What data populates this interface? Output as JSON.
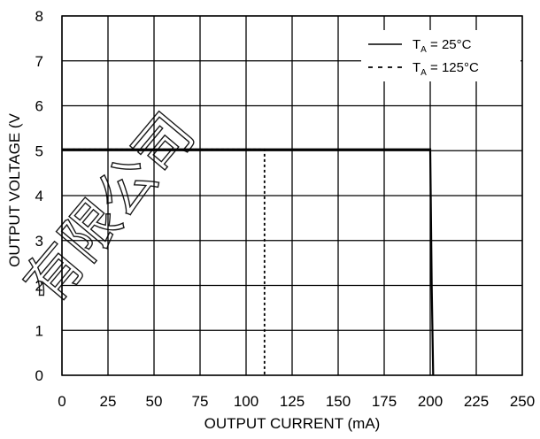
{
  "chart_data": {
    "type": "line",
    "xlabel": "OUTPUT CURRENT  (mA)",
    "ylabel": "OUTPUT VOLTAGE  (V",
    "xlim": [
      0,
      250
    ],
    "ylim": [
      0,
      8
    ],
    "x_ticks": [
      "0",
      "25",
      "50",
      "75",
      "100",
      "125",
      "150",
      "175",
      "200",
      "225",
      "250"
    ],
    "y_ticks": [
      "0",
      "1",
      "2",
      "3",
      "4",
      "5",
      "6",
      "7",
      "8"
    ],
    "grid": true,
    "legend_position": "top-right",
    "series": [
      {
        "name": "T_A = 25°C",
        "legend": {
          "main": "T",
          "sub": "A",
          "rest": " = 25°C"
        },
        "style": "solid",
        "points": [
          [
            0,
            5.03
          ],
          [
            200,
            5.03
          ],
          [
            200.8,
            2.0
          ],
          [
            201.6,
            0
          ]
        ]
      },
      {
        "name": "T_A = 125°C",
        "legend": {
          "main": "T",
          "sub": "A",
          "rest": " = 125°C"
        },
        "style": "dashed",
        "points": [
          [
            0,
            5.03
          ],
          [
            110,
            5.03
          ],
          [
            110,
            0
          ]
        ]
      }
    ]
  },
  "watermark": "有限公司",
  "colors": {
    "line": "#000000",
    "grid": "#000000",
    "background": "#ffffff"
  }
}
